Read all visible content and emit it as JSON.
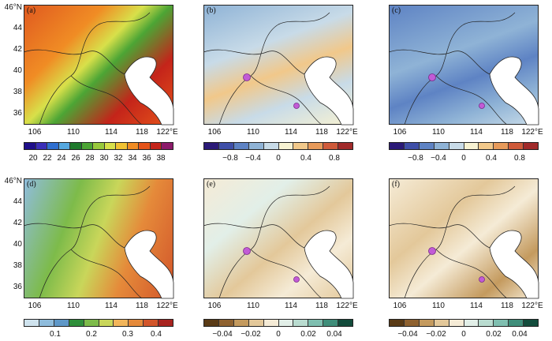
{
  "axis": {
    "lat_ticks": [
      "46°N",
      "44",
      "42",
      "40",
      "38",
      "36"
    ],
    "lon_ticks": [
      "106",
      "110",
      "114",
      "118",
      "122°E"
    ]
  },
  "panels": [
    {
      "id": "a",
      "label": "(a)",
      "theme": "temp",
      "colorbar": {
        "colors": [
          "#1f0f8a",
          "#3b2fb8",
          "#2f6fd0",
          "#55a8e0",
          "#1e7a2c",
          "#4ca535",
          "#98c93c",
          "#d8e04a",
          "#f1c232",
          "#f08c24",
          "#e5541a",
          "#c4241a",
          "#8c1a6a"
        ],
        "labels": [
          "20",
          "22",
          "24",
          "26",
          "28",
          "30",
          "32",
          "34",
          "36",
          "38"
        ]
      }
    },
    {
      "id": "b",
      "label": "(b)",
      "theme": "blue-ish",
      "colorbar": {
        "colors": [
          "#2b1a78",
          "#3f4fa8",
          "#5e83c4",
          "#8fb3d6",
          "#c8dbe8",
          "#f7f2d2",
          "#f1c88a",
          "#e79a5a",
          "#cf5a3a",
          "#a12a2a"
        ],
        "labels": [
          "−0.8",
          "−0.4",
          "0",
          "0.4",
          "0.8"
        ]
      }
    },
    {
      "id": "c",
      "label": "(c)",
      "theme": "blue-strong",
      "colorbar": {
        "colors": [
          "#2b1a78",
          "#3f4fa8",
          "#5e83c4",
          "#8fb3d6",
          "#c8dbe8",
          "#f7f2d2",
          "#f1c88a",
          "#e79a5a",
          "#cf5a3a",
          "#a12a2a"
        ],
        "labels": [
          "−0.8",
          "−0.4",
          "0",
          "0.4",
          "0.8"
        ]
      }
    },
    {
      "id": "d",
      "label": "(d)",
      "theme": "green",
      "colorbar": {
        "colors": [
          "#cfe3ee",
          "#8fbcdc",
          "#5f98c8",
          "#2f8f3a",
          "#7dbb4a",
          "#c9d65a",
          "#f2b55a",
          "#e58a3a",
          "#d2552a",
          "#a8231f"
        ],
        "labels": [
          "0.1",
          "0.2",
          "0.3",
          "0.4"
        ]
      }
    },
    {
      "id": "e",
      "label": "(e)",
      "theme": "tan",
      "colorbar": {
        "colors": [
          "#5a3b16",
          "#8f6230",
          "#c49a5e",
          "#e3c89a",
          "#f5ebd6",
          "#e2efe8",
          "#b9dcd0",
          "#7fbfb0",
          "#3f8e7a",
          "#134c3c"
        ],
        "labels": [
          "−0.04",
          "−0.02",
          "0",
          "0.02",
          "0.04"
        ]
      }
    },
    {
      "id": "f",
      "label": "(f)",
      "theme": "tan",
      "colorbar": {
        "colors": [
          "#5a3b16",
          "#8f6230",
          "#c49a5e",
          "#e3c89a",
          "#f5ebd6",
          "#e2efe8",
          "#b9dcd0",
          "#7fbfb0",
          "#3f8e7a",
          "#134c3c"
        ],
        "labels": [
          "−0.04",
          "−0.02",
          "0",
          "0.02",
          "0.04"
        ]
      }
    }
  ]
}
